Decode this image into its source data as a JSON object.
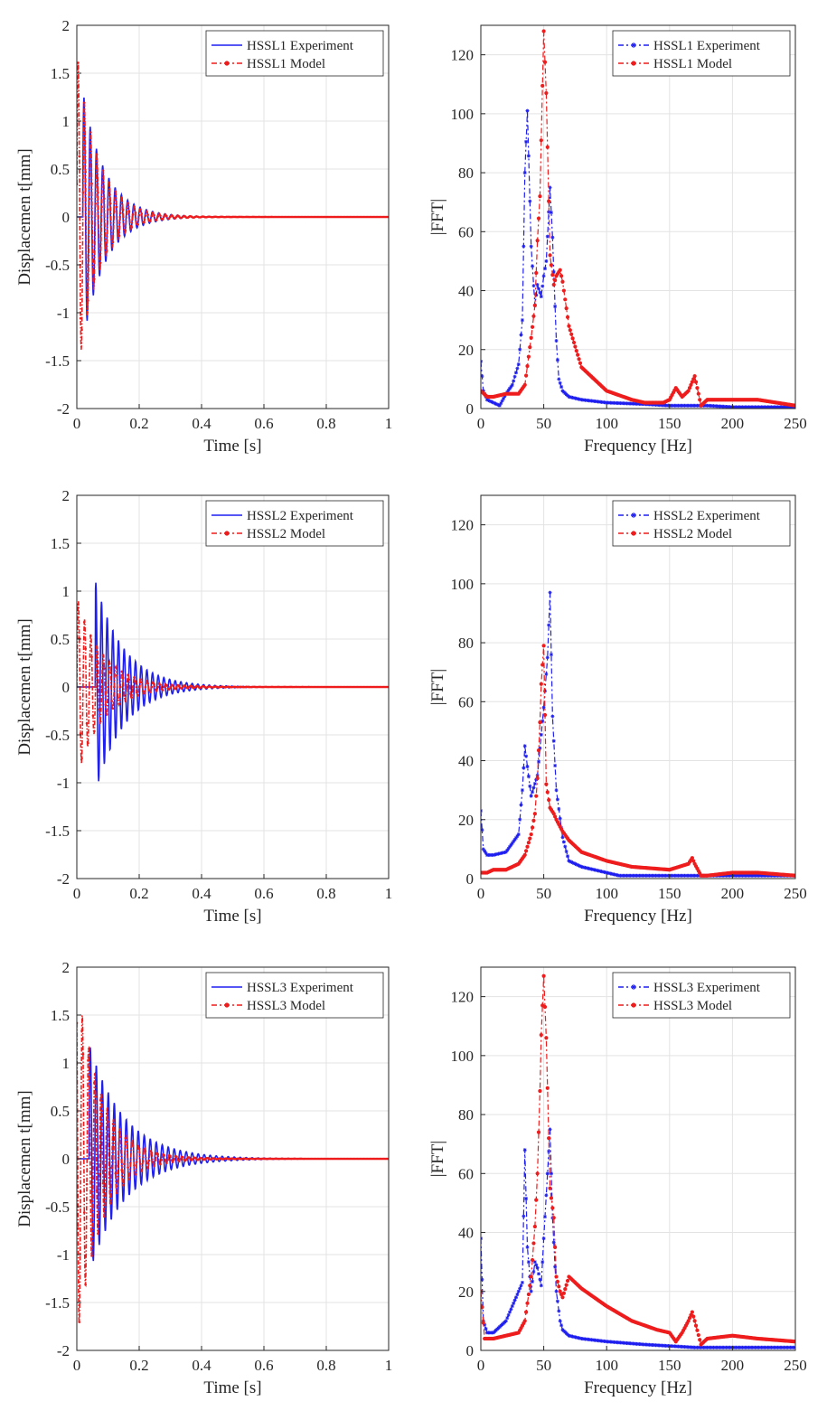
{
  "colors": {
    "experiment": "#1f1ff0",
    "model": "#ee1c1c",
    "grid": "#e3e3e3",
    "axis": "#262626"
  },
  "chart_data": [
    {
      "type": "line",
      "id": "time-1",
      "xlabel": "Time [s]",
      "ylabel": "Displacemen t[mm]",
      "xlim": [
        0,
        1
      ],
      "ylim": [
        -2,
        2
      ],
      "xticks": [
        "0",
        "0.2",
        "0.4",
        "0.6",
        "0.8",
        "1"
      ],
      "yticks": [
        "-2",
        "-1.5",
        "-1",
        "-0.5",
        "0",
        "0.5",
        "1",
        "1.5",
        "2"
      ],
      "xtick_values": [
        0,
        0.2,
        0.4,
        0.6,
        0.8,
        1
      ],
      "ytick_values": [
        -2,
        -1.5,
        -1,
        -0.5,
        0,
        0.5,
        1,
        1.5,
        2
      ],
      "series": [
        {
          "name": "HSSL1 Experiment",
          "role": "experiment",
          "style": "solid",
          "marker": "none",
          "signal": {
            "amp": 1.3,
            "freq": 50,
            "decay": 14,
            "phase": 0.6,
            "t0": 0.02
          }
        },
        {
          "name": "HSSL1 Model",
          "role": "model",
          "style": "dashdot",
          "marker": "dot",
          "signal": {
            "amp": 1.72,
            "freq": 50,
            "decay": 15,
            "phase": 0.2,
            "t0": 0.0
          }
        }
      ],
      "legend": "top-right"
    },
    {
      "type": "line",
      "id": "fft-1",
      "xlabel": "Frequency [Hz]",
      "ylabel": "|FFT|",
      "xlim": [
        0,
        250
      ],
      "ylim": [
        0,
        130
      ],
      "xticks": [
        "0",
        "50",
        "100",
        "150",
        "200",
        "250"
      ],
      "yticks": [
        "0",
        "20",
        "40",
        "60",
        "80",
        "100",
        "120"
      ],
      "xtick_values": [
        0,
        50,
        100,
        150,
        200,
        250
      ],
      "ytick_values": [
        0,
        20,
        40,
        60,
        80,
        100,
        120
      ],
      "series": [
        {
          "name": "HSSL1 Experiment",
          "role": "experiment",
          "style": "dashdot",
          "marker": "star",
          "x": [
            0,
            2,
            5,
            10,
            15,
            20,
            25,
            30,
            33,
            35,
            37,
            40,
            43,
            45,
            48,
            50,
            52,
            55,
            57,
            60,
            62,
            65,
            70,
            80,
            100,
            130,
            150,
            180,
            200,
            230,
            250
          ],
          "y": [
            16,
            6,
            3,
            2,
            1,
            5,
            8,
            15,
            30,
            80,
            101,
            55,
            35,
            42,
            38,
            45,
            50,
            75,
            58,
            23,
            10,
            6,
            4,
            3,
            2,
            1.5,
            1,
            1,
            0.5,
            0.5,
            0.5
          ]
        },
        {
          "name": "HSSL1 Model",
          "role": "model",
          "style": "dashdot",
          "marker": "dot",
          "x": [
            0,
            5,
            10,
            20,
            30,
            35,
            40,
            43,
            45,
            47,
            48,
            50,
            52,
            55,
            58,
            60,
            63,
            65,
            70,
            80,
            100,
            120,
            130,
            145,
            150,
            155,
            160,
            165,
            170,
            175,
            180,
            200,
            220,
            250
          ],
          "y": [
            6,
            4,
            4,
            5,
            5,
            8,
            24,
            35,
            57,
            72,
            91,
            128,
            107,
            52,
            42,
            45,
            47,
            43,
            28,
            14,
            6,
            3,
            2,
            2,
            3,
            7,
            4,
            6,
            11,
            1,
            3,
            3,
            3,
            1
          ]
        }
      ],
      "legend": "top-right"
    },
    {
      "type": "line",
      "id": "time-2",
      "xlabel": "Time [s]",
      "ylabel": "Displacemen t[mm]",
      "xlim": [
        0,
        1
      ],
      "ylim": [
        -2,
        2
      ],
      "xticks": [
        "0",
        "0.2",
        "0.4",
        "0.6",
        "0.8",
        "1"
      ],
      "yticks": [
        "-2",
        "-1.5",
        "-1",
        "-0.5",
        "0",
        "0.5",
        "1",
        "1.5",
        "2"
      ],
      "xtick_values": [
        0,
        0.2,
        0.4,
        0.6,
        0.8,
        1
      ],
      "ytick_values": [
        -2,
        -1.5,
        -1,
        -0.5,
        0,
        0.5,
        1,
        1.5,
        2
      ],
      "series": [
        {
          "name": "HSSL2 Experiment",
          "role": "experiment",
          "style": "solid",
          "marker": "none",
          "signal": {
            "amp": 1.1,
            "freq": 55,
            "decay": 11,
            "phase": 1.2,
            "t0": 0.06
          }
        },
        {
          "name": "HSSL2 Model",
          "role": "model",
          "style": "dashdot",
          "marker": "dot",
          "signal": {
            "amp": 0.95,
            "freq": 50,
            "decay": 12,
            "phase": 0.0,
            "t0": 0.0
          }
        }
      ],
      "legend": "top-right"
    },
    {
      "type": "line",
      "id": "fft-2",
      "xlabel": "Frequency [Hz]",
      "ylabel": "|FFT|",
      "xlim": [
        0,
        250
      ],
      "ylim": [
        0,
        130
      ],
      "xticks": [
        "0",
        "50",
        "100",
        "150",
        "200",
        "250"
      ],
      "yticks": [
        "0",
        "20",
        "40",
        "60",
        "80",
        "100",
        "120"
      ],
      "xtick_values": [
        0,
        50,
        100,
        150,
        200,
        250
      ],
      "ytick_values": [
        0,
        20,
        40,
        60,
        80,
        100,
        120
      ],
      "series": [
        {
          "name": "HSSL2 Experiment",
          "role": "experiment",
          "style": "dashdot",
          "marker": "star",
          "x": [
            0,
            2,
            5,
            10,
            20,
            30,
            33,
            35,
            37,
            40,
            45,
            50,
            53,
            55,
            57,
            60,
            65,
            70,
            80,
            100,
            110,
            130,
            150,
            170,
            200,
            250
          ],
          "y": [
            23,
            10,
            8,
            8,
            9,
            15,
            30,
            45,
            38,
            28,
            35,
            58,
            75,
            97,
            55,
            30,
            14,
            6,
            4,
            2,
            1,
            1,
            1,
            1,
            1,
            1
          ]
        },
        {
          "name": "HSSL2 Model",
          "role": "model",
          "style": "dashdot",
          "marker": "dot",
          "x": [
            0,
            5,
            10,
            20,
            30,
            35,
            40,
            43,
            45,
            47,
            48,
            50,
            52,
            55,
            58,
            60,
            65,
            70,
            80,
            100,
            120,
            150,
            165,
            168,
            170,
            175,
            180,
            200,
            220,
            250
          ],
          "y": [
            2,
            2,
            3,
            3,
            5,
            8,
            15,
            22,
            34,
            53,
            66,
            79,
            32,
            24,
            22,
            20,
            16,
            13,
            9,
            6,
            4,
            3,
            5,
            7,
            5,
            1,
            1,
            2,
            2,
            1
          ]
        }
      ],
      "legend": "top-right"
    },
    {
      "type": "line",
      "id": "time-3",
      "xlabel": "Time [s]",
      "ylabel": "Displacemen t[mm]",
      "xlim": [
        0,
        1
      ],
      "ylim": [
        -2,
        2
      ],
      "xticks": [
        "0",
        "0.2",
        "0.4",
        "0.6",
        "0.8",
        "1"
      ],
      "yticks": [
        "-2",
        "-1.5",
        "-1",
        "-0.5",
        "0",
        "0.5",
        "1",
        "1.5",
        "2"
      ],
      "xtick_values": [
        0,
        0.2,
        0.4,
        0.6,
        0.8,
        1
      ],
      "ytick_values": [
        -2,
        -1.5,
        -1,
        -0.5,
        0,
        0.5,
        1,
        1.5,
        2
      ],
      "series": [
        {
          "name": "HSSL3 Experiment",
          "role": "experiment",
          "style": "solid",
          "marker": "none",
          "signal": {
            "amp": 1.2,
            "freq": 52,
            "decay": 9,
            "phase": 0.5,
            "t0": 0.04
          }
        },
        {
          "name": "HSSL3 Model",
          "role": "model",
          "style": "dashdot",
          "marker": "dot",
          "signal": {
            "amp": 1.9,
            "freq": 50,
            "decay": 13,
            "phase": 2.3,
            "t0": 0.0
          }
        }
      ],
      "legend": "top-right"
    },
    {
      "type": "line",
      "id": "fft-3",
      "xlabel": "Frequency [Hz]",
      "ylabel": "|FFT|",
      "xlim": [
        0,
        250
      ],
      "ylim": [
        0,
        130
      ],
      "xticks": [
        "0",
        "50",
        "100",
        "150",
        "200",
        "250"
      ],
      "yticks": [
        "0",
        "20",
        "40",
        "60",
        "80",
        "100",
        "120"
      ],
      "xtick_values": [
        0,
        50,
        100,
        150,
        200,
        250
      ],
      "ytick_values": [
        0,
        20,
        40,
        60,
        80,
        100,
        120
      ],
      "series": [
        {
          "name": "HSSL3 Experiment",
          "role": "experiment",
          "style": "dashdot",
          "marker": "star",
          "x": [
            0,
            2,
            5,
            10,
            20,
            30,
            33,
            35,
            37,
            40,
            43,
            45,
            48,
            50,
            53,
            55,
            57,
            60,
            63,
            65,
            70,
            80,
            100,
            130,
            150,
            170,
            200,
            250
          ],
          "y": [
            38,
            10,
            6,
            6,
            10,
            20,
            23,
            68,
            35,
            20,
            30,
            28,
            22,
            38,
            60,
            75,
            45,
            20,
            10,
            7,
            5,
            4,
            3,
            2,
            1.5,
            1,
            1,
            1
          ]
        },
        {
          "name": "HSSL3 Model",
          "role": "model",
          "style": "dashdot",
          "marker": "dot",
          "x": [
            0,
            3,
            10,
            20,
            30,
            35,
            40,
            43,
            45,
            47,
            48,
            50,
            52,
            55,
            58,
            60,
            63,
            65,
            70,
            80,
            100,
            120,
            140,
            150,
            155,
            160,
            165,
            168,
            170,
            175,
            180,
            200,
            220,
            250
          ],
          "y": [
            20,
            4,
            4,
            5,
            6,
            10,
            25,
            42,
            60,
            88,
            107,
            127,
            106,
            55,
            45,
            25,
            20,
            18,
            25,
            21,
            15,
            10,
            7,
            6,
            3,
            6,
            10,
            13,
            10,
            2,
            4,
            5,
            4,
            3
          ]
        }
      ],
      "legend": "top-right"
    }
  ]
}
